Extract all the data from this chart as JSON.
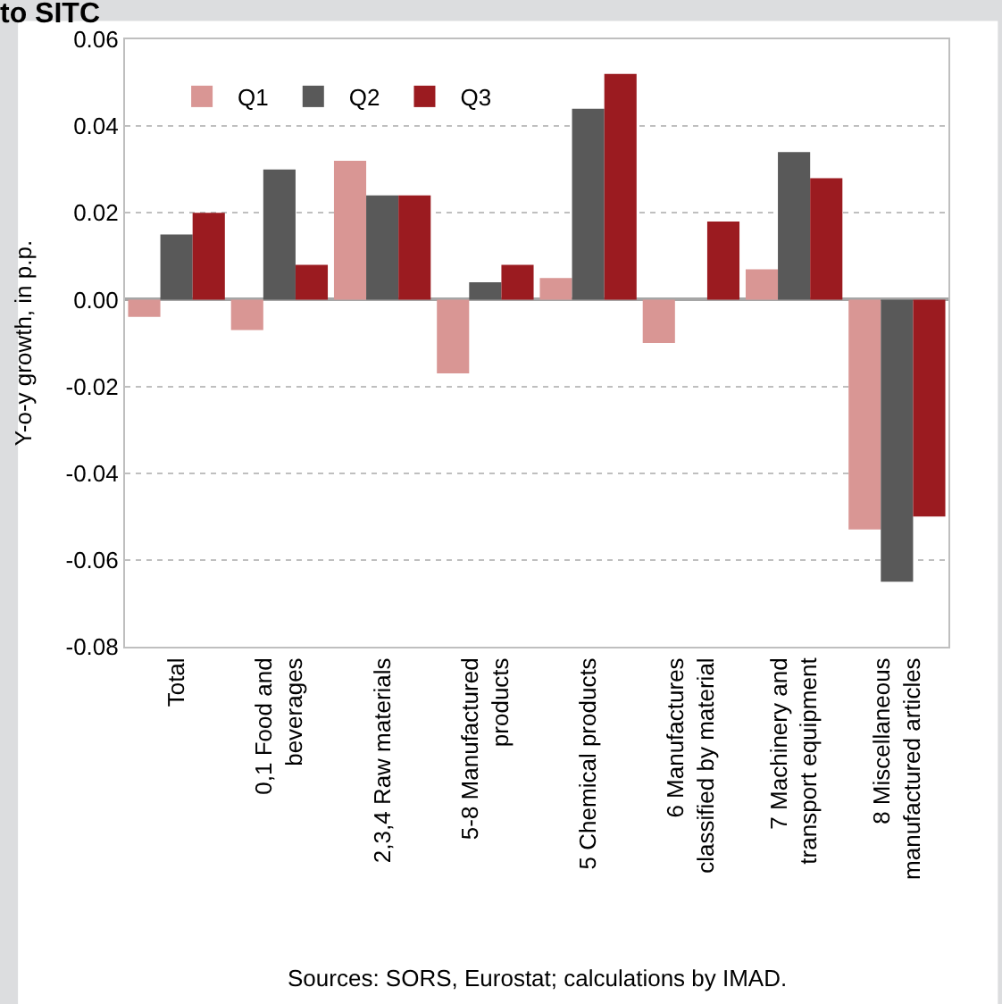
{
  "chart_data": {
    "type": "bar",
    "title": "to SITC",
    "ylabel": "Y-o-y growth, in p.p.",
    "categories": [
      "Total",
      "0,1 Food and\nbeverages",
      "2,3,4 Raw materials",
      "5-8 Manufactured\nproducts",
      "5 Chemical products",
      "6 Manufactures\nclassified by material",
      "7 Machinery and\ntransport equipment",
      "8 Miscellaneous\nmanufactured articles"
    ],
    "series": [
      {
        "name": "Q1",
        "color": "#d99694",
        "values": [
          -0.004,
          -0.007,
          0.032,
          -0.017,
          0.005,
          -0.01,
          0.007,
          -0.053
        ]
      },
      {
        "name": "Q2",
        "color": "#595959",
        "values": [
          0.015,
          0.03,
          0.024,
          0.004,
          0.044,
          0.0,
          0.034,
          -0.065
        ]
      },
      {
        "name": "Q3",
        "color": "#9b1b20",
        "values": [
          0.02,
          0.008,
          0.024,
          0.008,
          0.052,
          0.018,
          0.028,
          -0.05
        ]
      }
    ],
    "ylim": [
      -0.08,
      0.06
    ],
    "yticks": [
      {
        "value": -0.08,
        "label": "-0.08"
      },
      {
        "value": -0.06,
        "label": "-0.06"
      },
      {
        "value": -0.04,
        "label": "-0.04"
      },
      {
        "value": -0.02,
        "label": "-0.02"
      },
      {
        "value": 0.0,
        "label": "0.00"
      },
      {
        "value": 0.02,
        "label": "0.02"
      },
      {
        "value": 0.04,
        "label": "0.04"
      },
      {
        "value": 0.06,
        "label": "0.06"
      }
    ],
    "grid": "y",
    "legend": "top left",
    "annotations": [
      "Sources: SORS, Eurostat; calculations by IMAD."
    ]
  }
}
